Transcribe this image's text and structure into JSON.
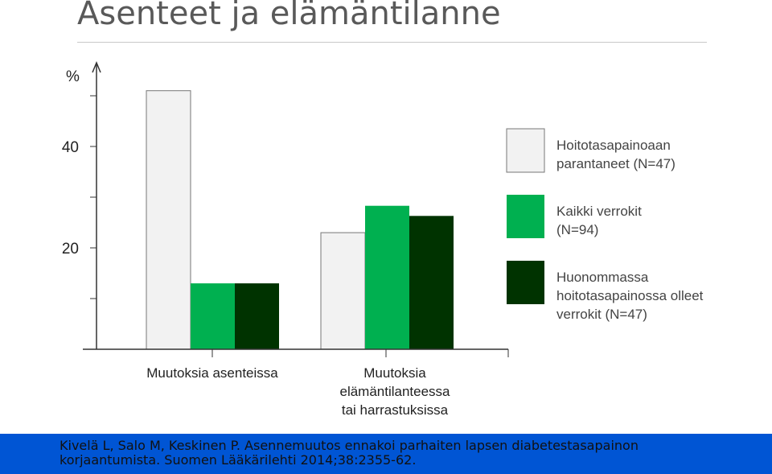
{
  "slide": {
    "title": "Asenteet ja elämäntilanne",
    "citation_line1": "Kivelä L, Salo M, Keskinen P. Asennemuutos ennakoi parhaiten lapsen diabetestasapainon",
    "citation_line2": "korjaantumista. Suomen Lääkärilehti 2014;38:2355-62."
  },
  "colors": {
    "series1": "#f2f2f2",
    "series2": "#00b050",
    "series3": "#003300",
    "footer": "#0055d4"
  },
  "chart_data": {
    "type": "bar",
    "ylabel": "%",
    "ylim": [
      0,
      52
    ],
    "yticks": [
      20,
      40
    ],
    "categories": [
      [
        "Muutoksia asenteissa"
      ],
      [
        "Muutoksia",
        "elämäntilanteessa",
        "tai harrastuksissa"
      ]
    ],
    "series": [
      {
        "name": "Hoitotasapainoaan parantaneet (N=47)",
        "legend_lines": [
          "Hoitotasapainoaan",
          "parantaneet (N=47)"
        ],
        "values": [
          51,
          23
        ]
      },
      {
        "name": "Kaikki verrokit (N=94)",
        "legend_lines": [
          "Kaikki verrokit",
          "(N=94)"
        ],
        "values": [
          13,
          28.3
        ]
      },
      {
        "name": "Huonommassa hoitotasapainossa olleet verrokit (N=47)",
        "legend_lines": [
          "Huonommassa",
          "hoitotasapainossa olleet",
          "verrokit (N=47)"
        ],
        "values": [
          13,
          26.3
        ]
      }
    ],
    "legend_position": "right",
    "grid": false
  }
}
